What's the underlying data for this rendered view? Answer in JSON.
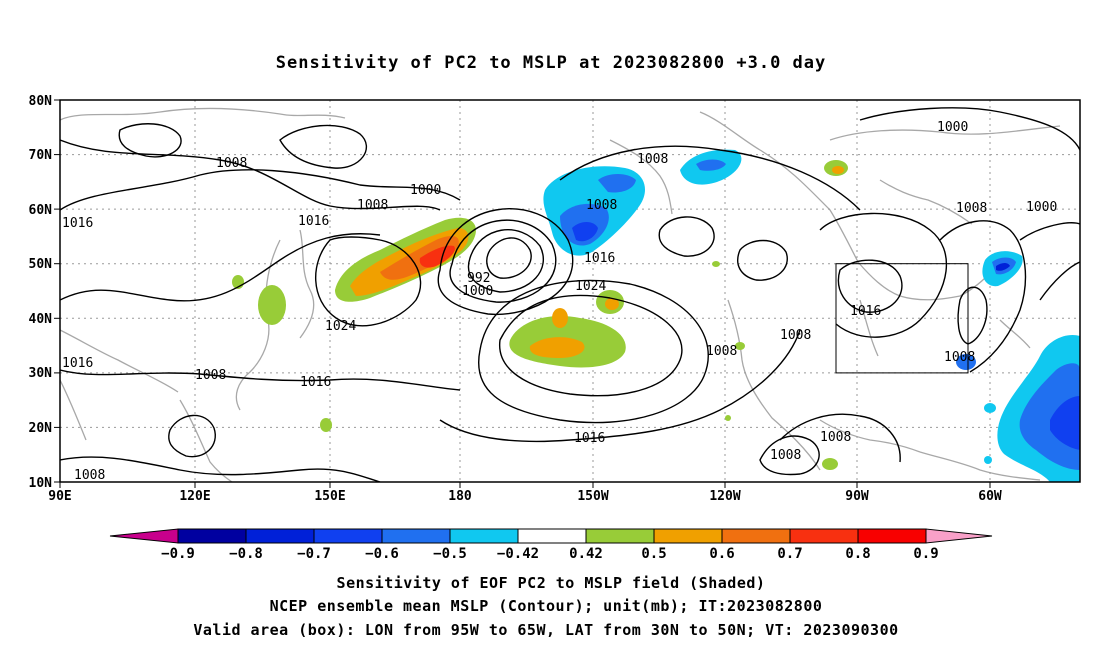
{
  "title": "Sensitivity of PC2 to MSLP at 2023082800 +3.0 day",
  "lat_labels": [
    "80N",
    "70N",
    "60N",
    "50N",
    "40N",
    "30N",
    "20N",
    "10N"
  ],
  "lon_labels": [
    "90E",
    "120E",
    "150E",
    "180",
    "150W",
    "120W",
    "90W",
    "60W"
  ],
  "contour_labels": [
    {
      "text": "1000"
    },
    {
      "text": "1008"
    },
    {
      "text": "1008"
    },
    {
      "text": "1000"
    },
    {
      "text": "1016"
    },
    {
      "text": "1008"
    },
    {
      "text": "1000"
    },
    {
      "text": "1016"
    },
    {
      "text": "1008"
    },
    {
      "text": "1008"
    },
    {
      "text": "1016"
    },
    {
      "text": "1016"
    },
    {
      "text": "992"
    },
    {
      "text": "1000"
    },
    {
      "text": "1024"
    },
    {
      "text": "1024"
    },
    {
      "text": "1016"
    },
    {
      "text": "1008"
    },
    {
      "text": "1008"
    },
    {
      "text": "1008"
    },
    {
      "text": "1016"
    },
    {
      "text": "1016"
    },
    {
      "text": "1008"
    },
    {
      "text": "1008"
    },
    {
      "text": "1008"
    },
    {
      "text": "1008"
    },
    {
      "text": "1016"
    }
  ],
  "colorbar": {
    "labels": [
      "-0.9",
      "-0.8",
      "-0.7",
      "-0.6",
      "-0.5",
      "-0.42",
      "0.42",
      "0.5",
      "0.6",
      "0.7",
      "0.8",
      "0.9"
    ],
    "colors": [
      "#0000a0",
      "#0020d8",
      "#1040f0",
      "#2070f0",
      "#10c8f0",
      "#ffffff",
      "#98cc38",
      "#f0a000",
      "#f07010",
      "#f83010",
      "#f80000"
    ],
    "end_low_color": "#c8008c",
    "end_high_color": "#f8a0c8"
  },
  "captions": [
    "Sensitivity of EOF PC2 to MSLP field (Shaded)",
    "NCEP ensemble mean MSLP (Contour); unit(mb); IT:2023082800",
    "Valid area (box): LON from 95W to 65W, LAT from 30N to 50N; VT: 2023090300"
  ],
  "valid_box": {
    "lon_range": [
      "95W",
      "65W"
    ],
    "lat_range": [
      "30N",
      "50N"
    ]
  }
}
